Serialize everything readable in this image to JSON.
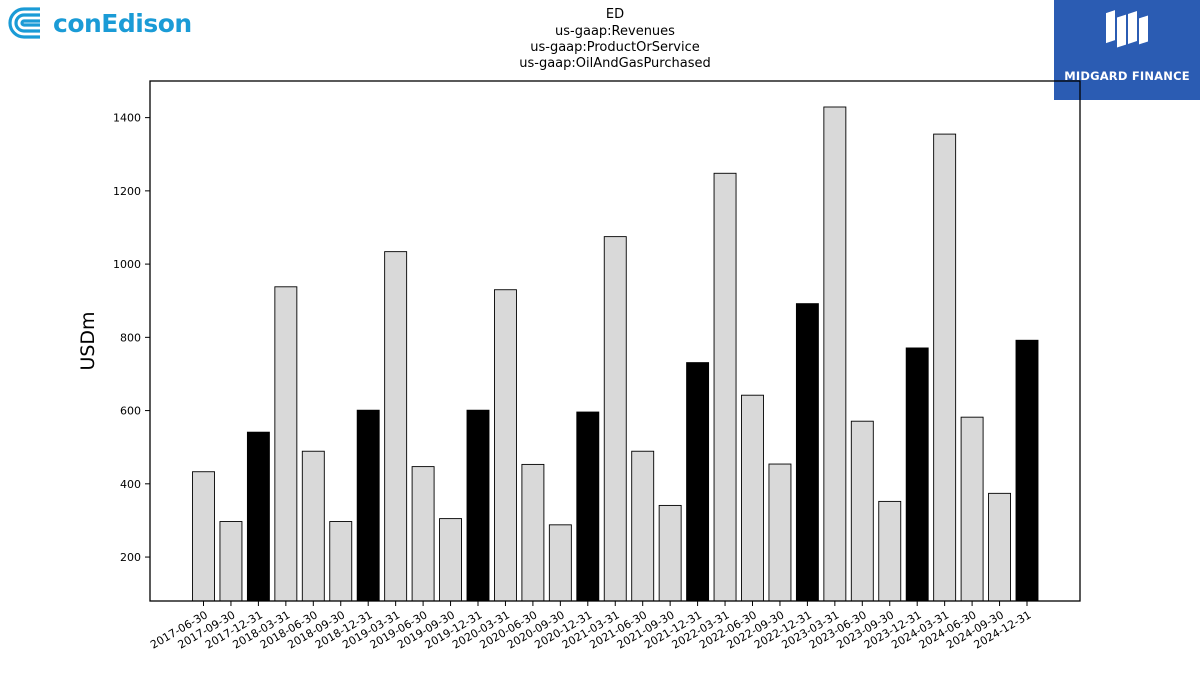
{
  "title_lines": [
    "ED",
    "us-gaap:Revenues",
    "us-gaap:ProductOrService",
    "us-gaap:OilAndGasPurchased"
  ],
  "logos": {
    "left": {
      "text": "conEdison",
      "color": "#1a9bd6"
    },
    "right": {
      "text": "MIDGARD FINANCE",
      "background": "#2b5cb3"
    }
  },
  "chart_data": {
    "type": "bar",
    "title": "ED\nus-gaap:Revenues\nus-gaap:ProductOrService\nus-gaap:OilAndGasPurchased",
    "xlabel": "",
    "ylabel": "USDm",
    "ylim": [
      80,
      1500
    ],
    "yticks": [
      200,
      400,
      600,
      800,
      1000,
      1200,
      1400
    ],
    "grid": false,
    "colors": {
      "quarter": "#d9d9d9",
      "year_end": "#000000",
      "edge": "#000000"
    },
    "categories": [
      "2017-06-30",
      "2017-09-30",
      "2017-12-31",
      "2018-03-31",
      "2018-06-30",
      "2018-09-30",
      "2018-12-31",
      "2019-03-31",
      "2019-06-30",
      "2019-09-30",
      "2019-12-31",
      "2020-03-31",
      "2020-06-30",
      "2020-09-30",
      "2020-12-31",
      "2021-03-31",
      "2021-06-30",
      "2021-09-30",
      "2021-12-31",
      "2022-03-31",
      "2022-06-30",
      "2022-09-30",
      "2022-12-31",
      "2023-03-31",
      "2023-06-30",
      "2023-09-30",
      "2023-12-31",
      "2024-03-31",
      "2024-06-30",
      "2024-09-30",
      "2024-12-31"
    ],
    "values": [
      433,
      297,
      541,
      938,
      489,
      297,
      601,
      1034,
      447,
      305,
      601,
      930,
      453,
      288,
      596,
      1075,
      489,
      341,
      731,
      1248,
      642,
      454,
      892,
      1429,
      571,
      352,
      771,
      1355,
      582,
      374,
      792
    ],
    "year_end": [
      false,
      false,
      true,
      false,
      false,
      false,
      true,
      false,
      false,
      false,
      true,
      false,
      false,
      false,
      true,
      false,
      false,
      false,
      true,
      false,
      false,
      false,
      true,
      false,
      false,
      false,
      true,
      false,
      false,
      false,
      true
    ]
  }
}
